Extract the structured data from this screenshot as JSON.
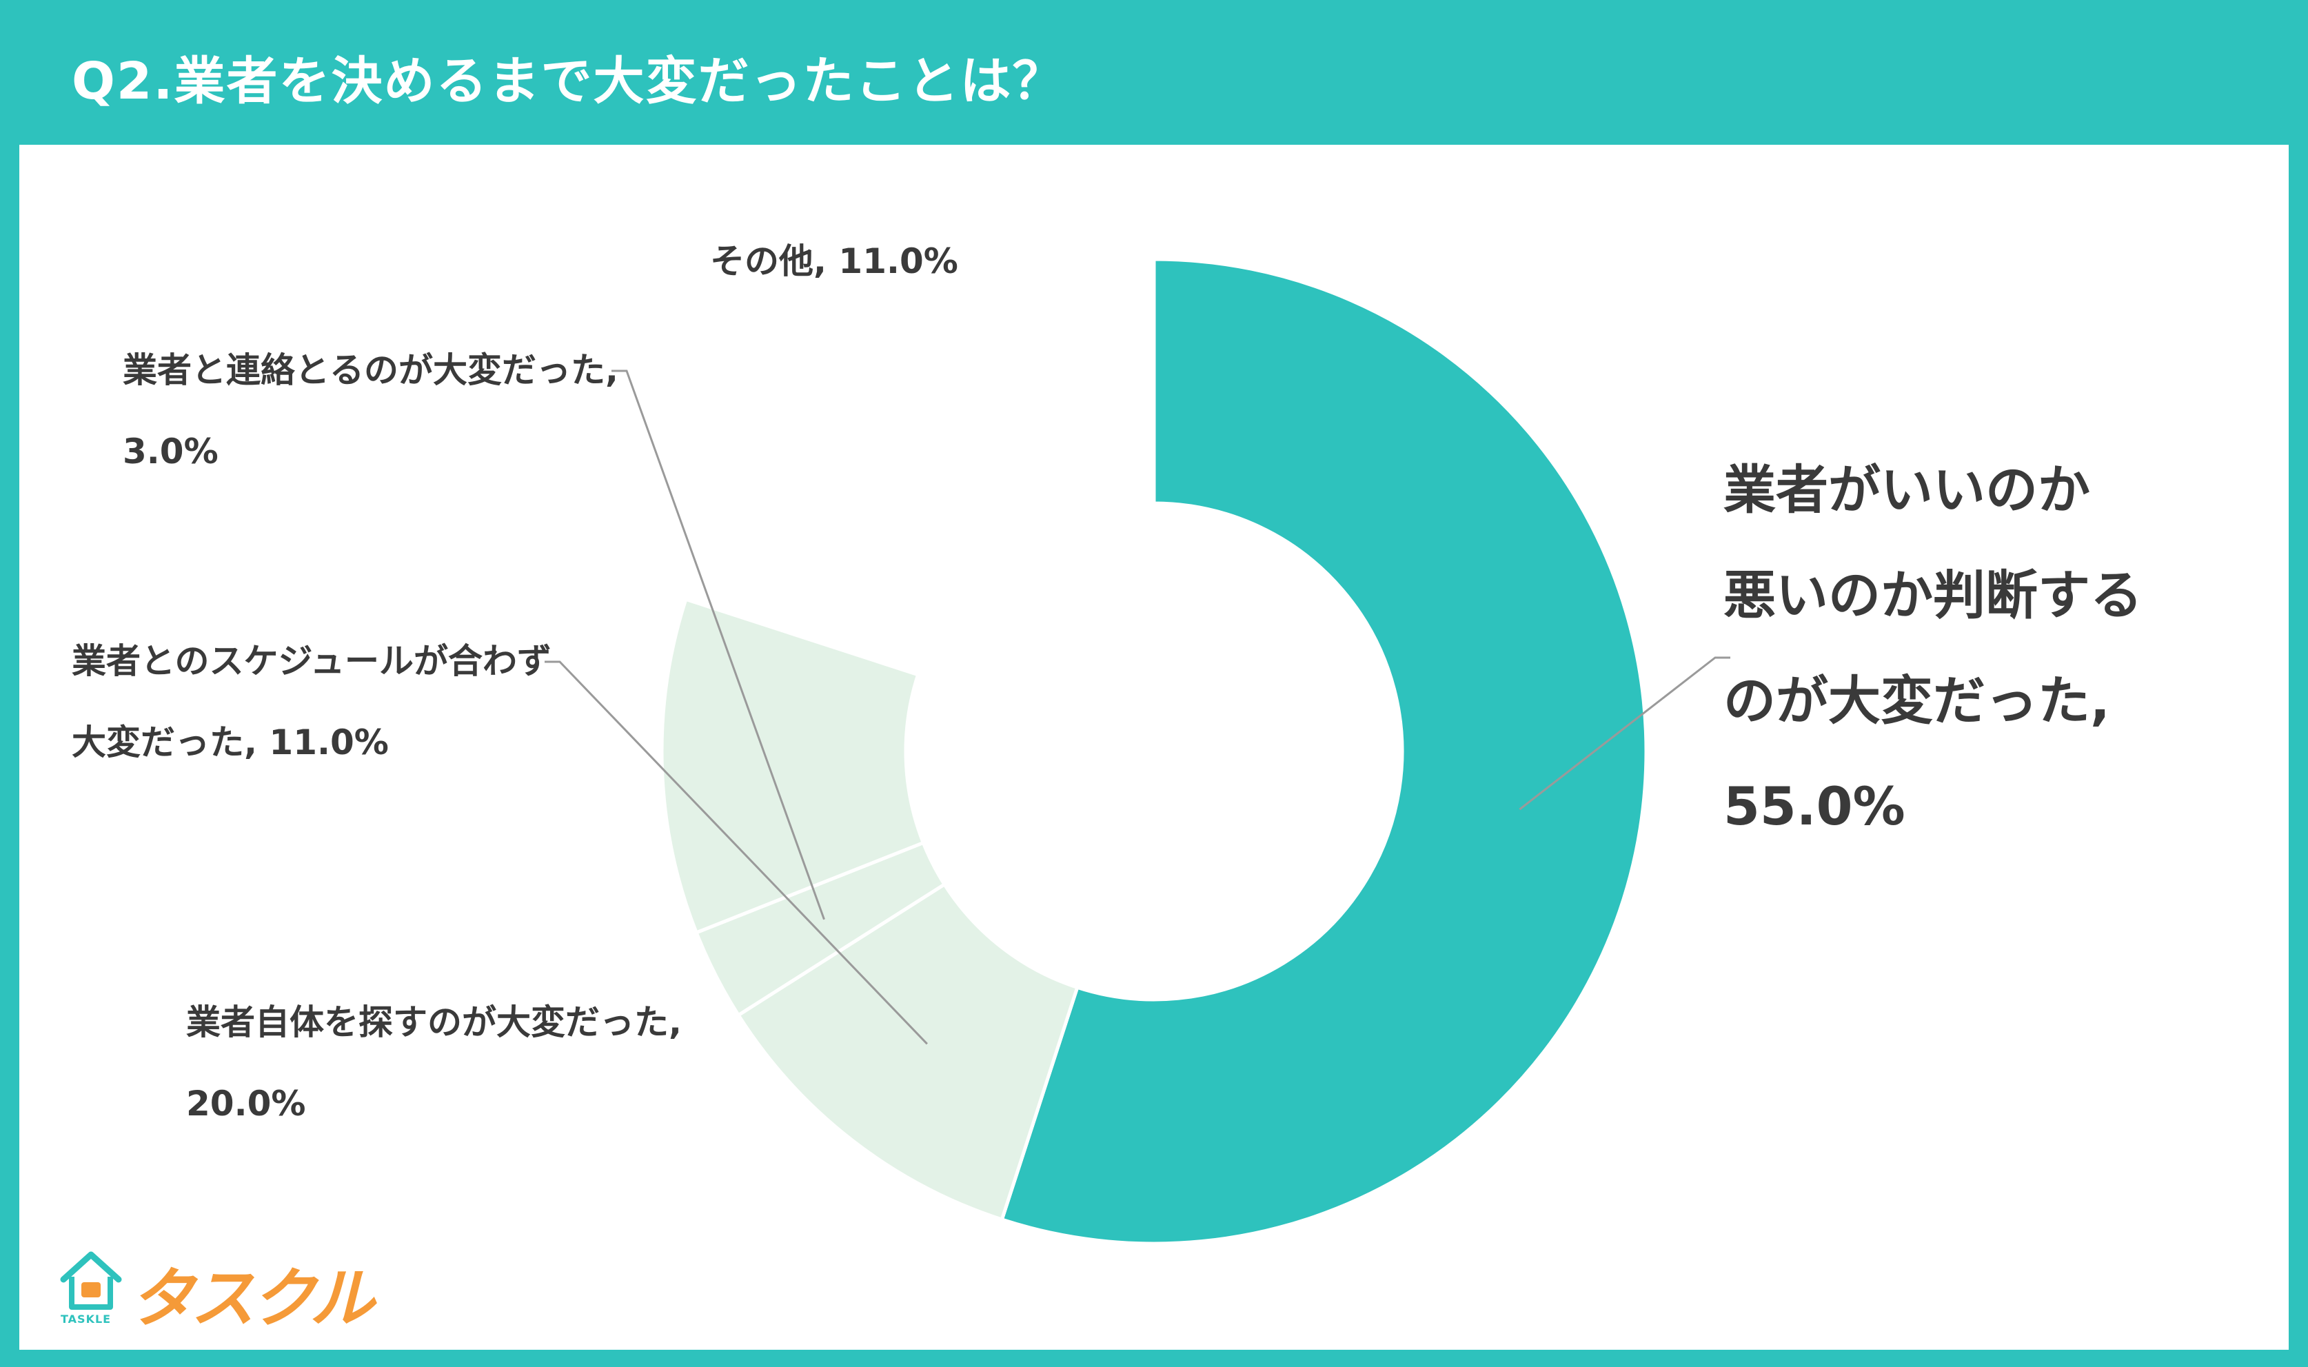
{
  "title": "Q2.業者を決めるまで大変だったことは？",
  "colors": {
    "background": "#2ec2bd",
    "highlight_slice": "#2ec2bd",
    "other_slices": "#e3f2e7",
    "text": "#3a3a3a",
    "logo_orange": "#f59a38"
  },
  "logo": {
    "text": "タスクル",
    "sub": "TASKLE",
    "icon": "house-icon"
  },
  "chart_data": {
    "type": "pie",
    "title": "",
    "donut": true,
    "unit": "%",
    "categories": [
      "業者がいいのか悪いのか判断するのが大変だった",
      "業者自体を探すのが大変だった",
      "業者とのスケジュールが合わず大変だった",
      "業者と連絡とるのが大変だった",
      "その他"
    ],
    "values": [
      55.0,
      20.0,
      11.0,
      3.0,
      11.0
    ],
    "labels": [
      {
        "lines": [
          "業者がいいのか",
          "悪いのか判断する",
          "のが大変だった,",
          "55.0%"
        ]
      },
      {
        "lines": [
          "業者自体を探すのが大変だった,",
          "20.0%"
        ]
      },
      {
        "lines": [
          "業者とのスケジュールが合わず",
          "大変だった, 11.0%"
        ]
      },
      {
        "lines": [
          "業者と連絡とるのが大変だった,",
          "3.0%"
        ]
      },
      {
        "lines": [
          "その他, 11.0%"
        ]
      }
    ]
  }
}
